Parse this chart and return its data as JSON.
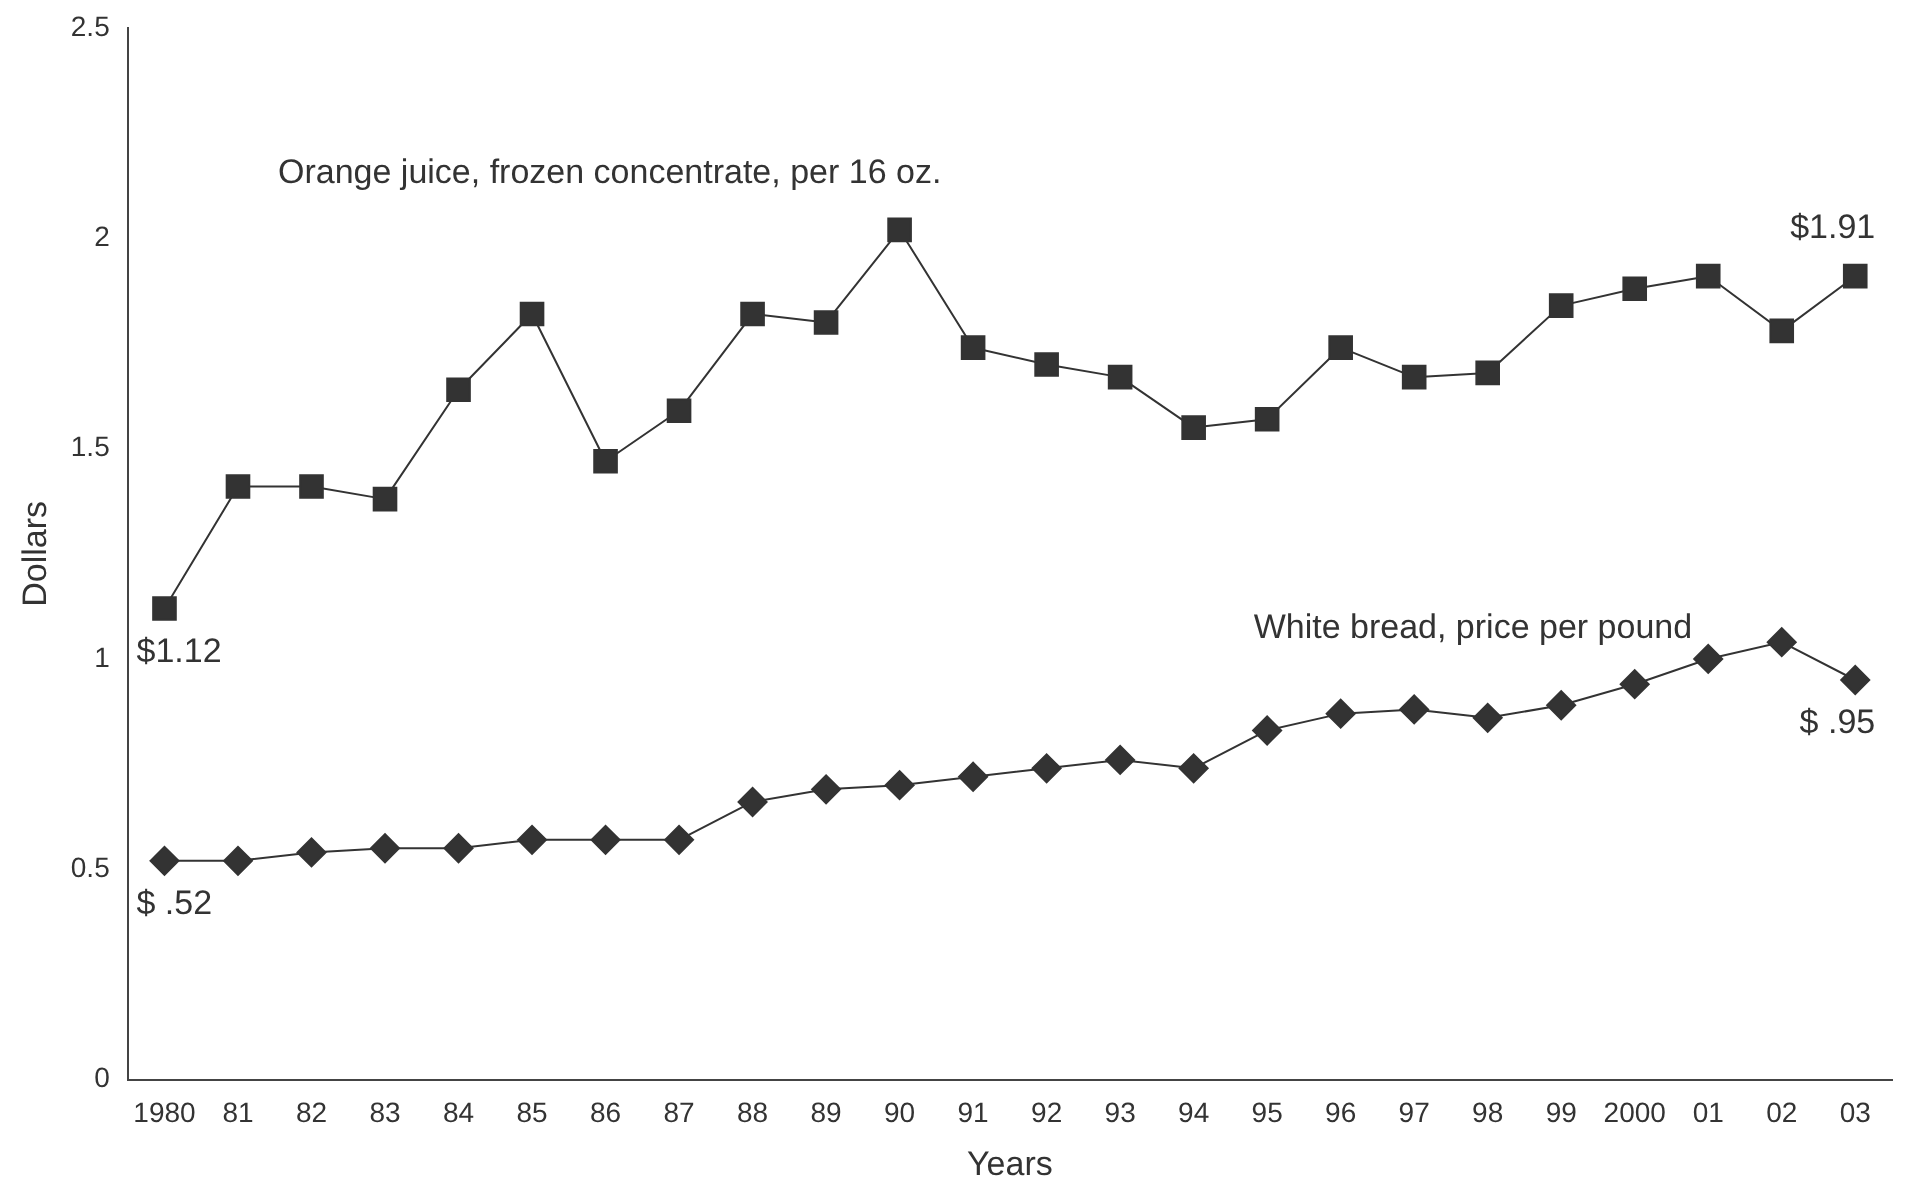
{
  "chart_data": {
    "type": "line",
    "xlabel": "Years",
    "ylabel": "Dollars",
    "categories": [
      "1980",
      "81",
      "82",
      "83",
      "84",
      "85",
      "86",
      "87",
      "88",
      "89",
      "90",
      "91",
      "92",
      "93",
      "94",
      "95",
      "96",
      "97",
      "98",
      "99",
      "2000",
      "01",
      "02",
      "03"
    ],
    "series": [
      {
        "name": "Orange juice, frozen concentrate, per 16 oz.",
        "color": "#333333",
        "marker": "square",
        "values": [
          1.12,
          1.41,
          1.41,
          1.38,
          1.64,
          1.82,
          1.47,
          1.59,
          1.82,
          1.8,
          2.02,
          1.74,
          1.7,
          1.67,
          1.55,
          1.57,
          1.74,
          1.67,
          1.68,
          1.84,
          1.88,
          1.91,
          1.78,
          1.91
        ]
      },
      {
        "name": "White bread, price per pound",
        "color": "#333333",
        "marker": "diamond",
        "values": [
          0.52,
          0.52,
          0.54,
          0.55,
          0.55,
          0.57,
          0.57,
          0.57,
          0.66,
          0.69,
          0.7,
          0.72,
          0.74,
          0.76,
          0.74,
          0.83,
          0.87,
          0.88,
          0.86,
          0.89,
          0.94,
          1.0,
          1.04,
          0.95
        ]
      }
    ],
    "ylim": [
      0,
      2.5
    ],
    "yticks": [
      0,
      0.5,
      1,
      1.5,
      2,
      2.5
    ],
    "grid": false,
    "legend": false,
    "annotations": [
      {
        "text": "$1.12",
        "x": "1980",
        "y": 1.12
      },
      {
        "text": "$ .52",
        "x": "1980",
        "y": 0.52
      },
      {
        "text": "$1.91",
        "x": "03",
        "y": 1.91
      },
      {
        "text": "$ .95",
        "x": "03",
        "y": 0.95
      }
    ]
  }
}
